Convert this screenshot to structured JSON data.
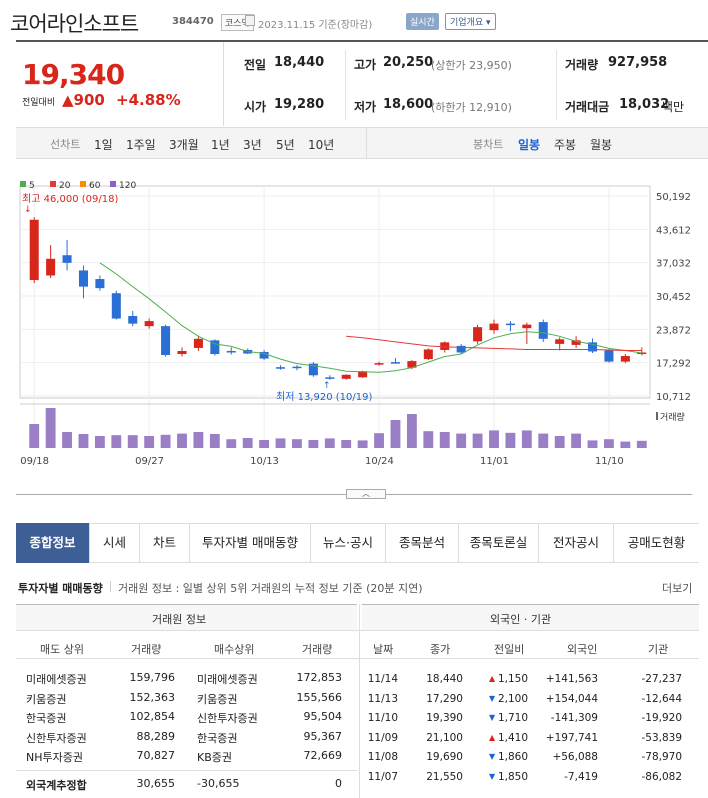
{
  "header": {
    "stock_name": "코어라인소프트",
    "code": "384470",
    "market": "코스닥",
    "date": "2023.11.15 기준(장마감)",
    "live_label": "실시간",
    "overview_label": "기업개요 ▾"
  },
  "quote": {
    "price": "19,340",
    "change_label": "전일대비",
    "change": "▲900",
    "change_pct": "+4.88%",
    "prev_label": "전일",
    "prev": "18,440",
    "high_label": "고가",
    "high": "20,250",
    "upper_limit": "(상한가 23,950)",
    "volume_label": "거래량",
    "volume": "927,958",
    "open_label": "시가",
    "open": "19,280",
    "low_label": "저가",
    "low": "18,600",
    "lower_limit": "(하한가 12,910)",
    "value_label": "거래대금",
    "value": "18,032",
    "value_unit": "백만"
  },
  "period_bar": {
    "line_label": "선차트",
    "line_periods": [
      "1일",
      "1주일",
      "3개월",
      "1년",
      "3년",
      "5년",
      "10년"
    ],
    "candle_label": "봉차트",
    "candle_periods": [
      "일봉",
      "주봉",
      "월봉"
    ],
    "active_candle": "일봉"
  },
  "chart_data": {
    "type": "candlestick",
    "legend": [
      "5",
      "20",
      "60",
      "120"
    ],
    "legend_colors": [
      "#4caf50",
      "#e53935",
      "#fb8c00",
      "#8e5ec9"
    ],
    "y_ticks": [
      50192,
      43612,
      37032,
      30452,
      23872,
      17292,
      10712
    ],
    "ylim": [
      10712,
      50192
    ],
    "x_ticks": [
      "09/18",
      "09/27",
      "10/13",
      "10/24",
      "11/01",
      "11/10"
    ],
    "x_tick_index": [
      0,
      7,
      14,
      21,
      28,
      35
    ],
    "high_note": "최고 46,000 (09/18)",
    "low_note": "최저 13,920 (10/19)",
    "volume_label": "거래량",
    "candles": [
      {
        "o": 33600,
        "h": 46000,
        "l": 33000,
        "c": 45500
      },
      {
        "o": 34500,
        "h": 40500,
        "l": 34000,
        "c": 37800
      },
      {
        "o": 38500,
        "h": 41500,
        "l": 35500,
        "c": 37000
      },
      {
        "o": 35500,
        "h": 36500,
        "l": 30000,
        "c": 32300
      },
      {
        "o": 33800,
        "h": 34500,
        "l": 31500,
        "c": 32000
      },
      {
        "o": 31000,
        "h": 31500,
        "l": 25800,
        "c": 26000
      },
      {
        "o": 26500,
        "h": 27500,
        "l": 24500,
        "c": 25000
      },
      {
        "o": 24500,
        "h": 26000,
        "l": 24000,
        "c": 25500
      },
      {
        "o": 24500,
        "h": 24800,
        "l": 18500,
        "c": 18800
      },
      {
        "o": 19000,
        "h": 20300,
        "l": 18500,
        "c": 19600
      },
      {
        "o": 20200,
        "h": 22600,
        "l": 19600,
        "c": 22000
      },
      {
        "o": 21700,
        "h": 21900,
        "l": 18700,
        "c": 19000
      },
      {
        "o": 19600,
        "h": 20300,
        "l": 18900,
        "c": 19300
      },
      {
        "o": 19800,
        "h": 20100,
        "l": 19000,
        "c": 19100
      },
      {
        "o": 19400,
        "h": 19800,
        "l": 17800,
        "c": 18100
      },
      {
        "o": 16400,
        "h": 16800,
        "l": 15900,
        "c": 16100
      },
      {
        "o": 16500,
        "h": 16800,
        "l": 15800,
        "c": 16200
      },
      {
        "o": 17100,
        "h": 17400,
        "l": 14500,
        "c": 14800
      },
      {
        "o": 14400,
        "h": 14800,
        "l": 13920,
        "c": 14200
      },
      {
        "o": 14100,
        "h": 15000,
        "l": 13950,
        "c": 14900
      },
      {
        "o": 14400,
        "h": 15700,
        "l": 14300,
        "c": 15600
      },
      {
        "o": 17000,
        "h": 17500,
        "l": 16700,
        "c": 17200
      },
      {
        "o": 17400,
        "h": 18200,
        "l": 17100,
        "c": 17300
      },
      {
        "o": 16300,
        "h": 17800,
        "l": 16000,
        "c": 17600
      },
      {
        "o": 18000,
        "h": 20100,
        "l": 17800,
        "c": 19900
      },
      {
        "o": 19800,
        "h": 21500,
        "l": 19300,
        "c": 21300
      },
      {
        "o": 20600,
        "h": 21000,
        "l": 19000,
        "c": 19300
      },
      {
        "o": 21500,
        "h": 24800,
        "l": 21000,
        "c": 24300
      },
      {
        "o": 23700,
        "h": 25800,
        "l": 23000,
        "c": 25000
      },
      {
        "o": 25000,
        "h": 25500,
        "l": 23500,
        "c": 24800
      },
      {
        "o": 24100,
        "h": 25200,
        "l": 21000,
        "c": 24800
      },
      {
        "o": 25300,
        "h": 25800,
        "l": 21400,
        "c": 22000
      },
      {
        "o": 21000,
        "h": 22300,
        "l": 19700,
        "c": 21900
      },
      {
        "o": 20800,
        "h": 22500,
        "l": 20200,
        "c": 21700
      },
      {
        "o": 21300,
        "h": 22100,
        "l": 19200,
        "c": 19500
      },
      {
        "o": 19700,
        "h": 20000,
        "l": 17300,
        "c": 17500
      },
      {
        "o": 17500,
        "h": 19000,
        "l": 17200,
        "c": 18600
      },
      {
        "o": 19000,
        "h": 20300,
        "l": 18700,
        "c": 19300
      }
    ],
    "ma5": [
      null,
      null,
      null,
      null,
      37000,
      34800,
      32300,
      29900,
      27300,
      24600,
      22500,
      21000,
      20500,
      19500,
      19100,
      18000,
      17100,
      16700,
      16200,
      15600,
      15500,
      15400,
      15700,
      16300,
      17400,
      18500,
      19000,
      20800,
      22200,
      23000,
      23400,
      23200,
      22500,
      21500,
      20900,
      20100,
      19700,
      19200
    ],
    "ma20": [
      null,
      null,
      null,
      null,
      null,
      null,
      null,
      null,
      null,
      null,
      null,
      null,
      null,
      null,
      null,
      null,
      null,
      null,
      null,
      22500,
      22200,
      21800,
      21400,
      21000,
      20600,
      20400,
      20300,
      20200,
      20100,
      20000,
      19900,
      19900,
      19900,
      19900,
      19900,
      19800,
      19700,
      19700
    ],
    "volume": [
      60,
      100,
      40,
      35,
      30,
      32,
      32,
      30,
      33,
      36,
      40,
      35,
      22,
      25,
      20,
      24,
      22,
      20,
      24,
      20,
      19,
      37,
      70,
      85,
      42,
      40,
      36,
      36,
      44,
      38,
      44,
      36,
      30,
      36,
      19,
      22,
      16,
      18
    ]
  },
  "tabs": {
    "items": [
      "종합정보",
      "시세",
      "차트",
      "투자자별 매매동향",
      "뉴스·공시",
      "종목분석",
      "종목토론실",
      "전자공시",
      "공매도현황"
    ],
    "active": "종합정보"
  },
  "investor": {
    "title": "투자자별 매매동향",
    "subtitle": "거래원 정보 : 일별 상위 5위 거래원의 누적 정보 기준 (20분 지연)",
    "more": "더보기",
    "left_title": "거래원 정보",
    "left_headers": [
      "매도 상위",
      "거래량",
      "매수상위",
      "거래량"
    ],
    "left_rows": [
      [
        "미래에셋증권",
        "159,796",
        "미래에셋증권",
        "172,853"
      ],
      [
        "키움증권",
        "152,363",
        "키움증권",
        "155,566"
      ],
      [
        "한국증권",
        "102,854",
        "신한투자증권",
        "95,504"
      ],
      [
        "신한투자증권",
        "88,289",
        "한국증권",
        "95,367"
      ],
      [
        "NH투자증권",
        "70,827",
        "KB증권",
        "72,669"
      ]
    ],
    "foreign_total": [
      "외국계추정합",
      "30,655",
      "-30,655",
      "0"
    ],
    "right_title": "외국인 · 기관",
    "right_headers": [
      "날짜",
      "종가",
      "전일비",
      "외국인",
      "기관"
    ],
    "right_rows": [
      {
        "date": "11/14",
        "close": "18,440",
        "arrow": "▲",
        "diff": "1,150",
        "dir": "up",
        "foreign": "+141,563",
        "f_dir": "up",
        "inst": "-27,237"
      },
      {
        "date": "11/13",
        "close": "17,290",
        "arrow": "▼",
        "diff": "2,100",
        "dir": "down",
        "foreign": "+154,044",
        "f_dir": "up",
        "inst": "-12,644"
      },
      {
        "date": "11/10",
        "close": "19,390",
        "arrow": "▼",
        "diff": "1,710",
        "dir": "down",
        "foreign": "-141,309",
        "f_dir": "down",
        "inst": "-19,920"
      },
      {
        "date": "11/09",
        "close": "21,100",
        "arrow": "▲",
        "diff": "1,410",
        "dir": "up",
        "foreign": "+197,741",
        "f_dir": "up",
        "inst": "-53,839"
      },
      {
        "date": "11/08",
        "close": "19,690",
        "arrow": "▼",
        "diff": "1,860",
        "dir": "down",
        "foreign": "+56,088",
        "f_dir": "up",
        "inst": "-78,970"
      },
      {
        "date": "11/07",
        "close": "21,550",
        "arrow": "▼",
        "diff": "1,850",
        "dir": "down",
        "foreign": "-7,419",
        "f_dir": "down",
        "inst": "-86,082"
      }
    ]
  }
}
